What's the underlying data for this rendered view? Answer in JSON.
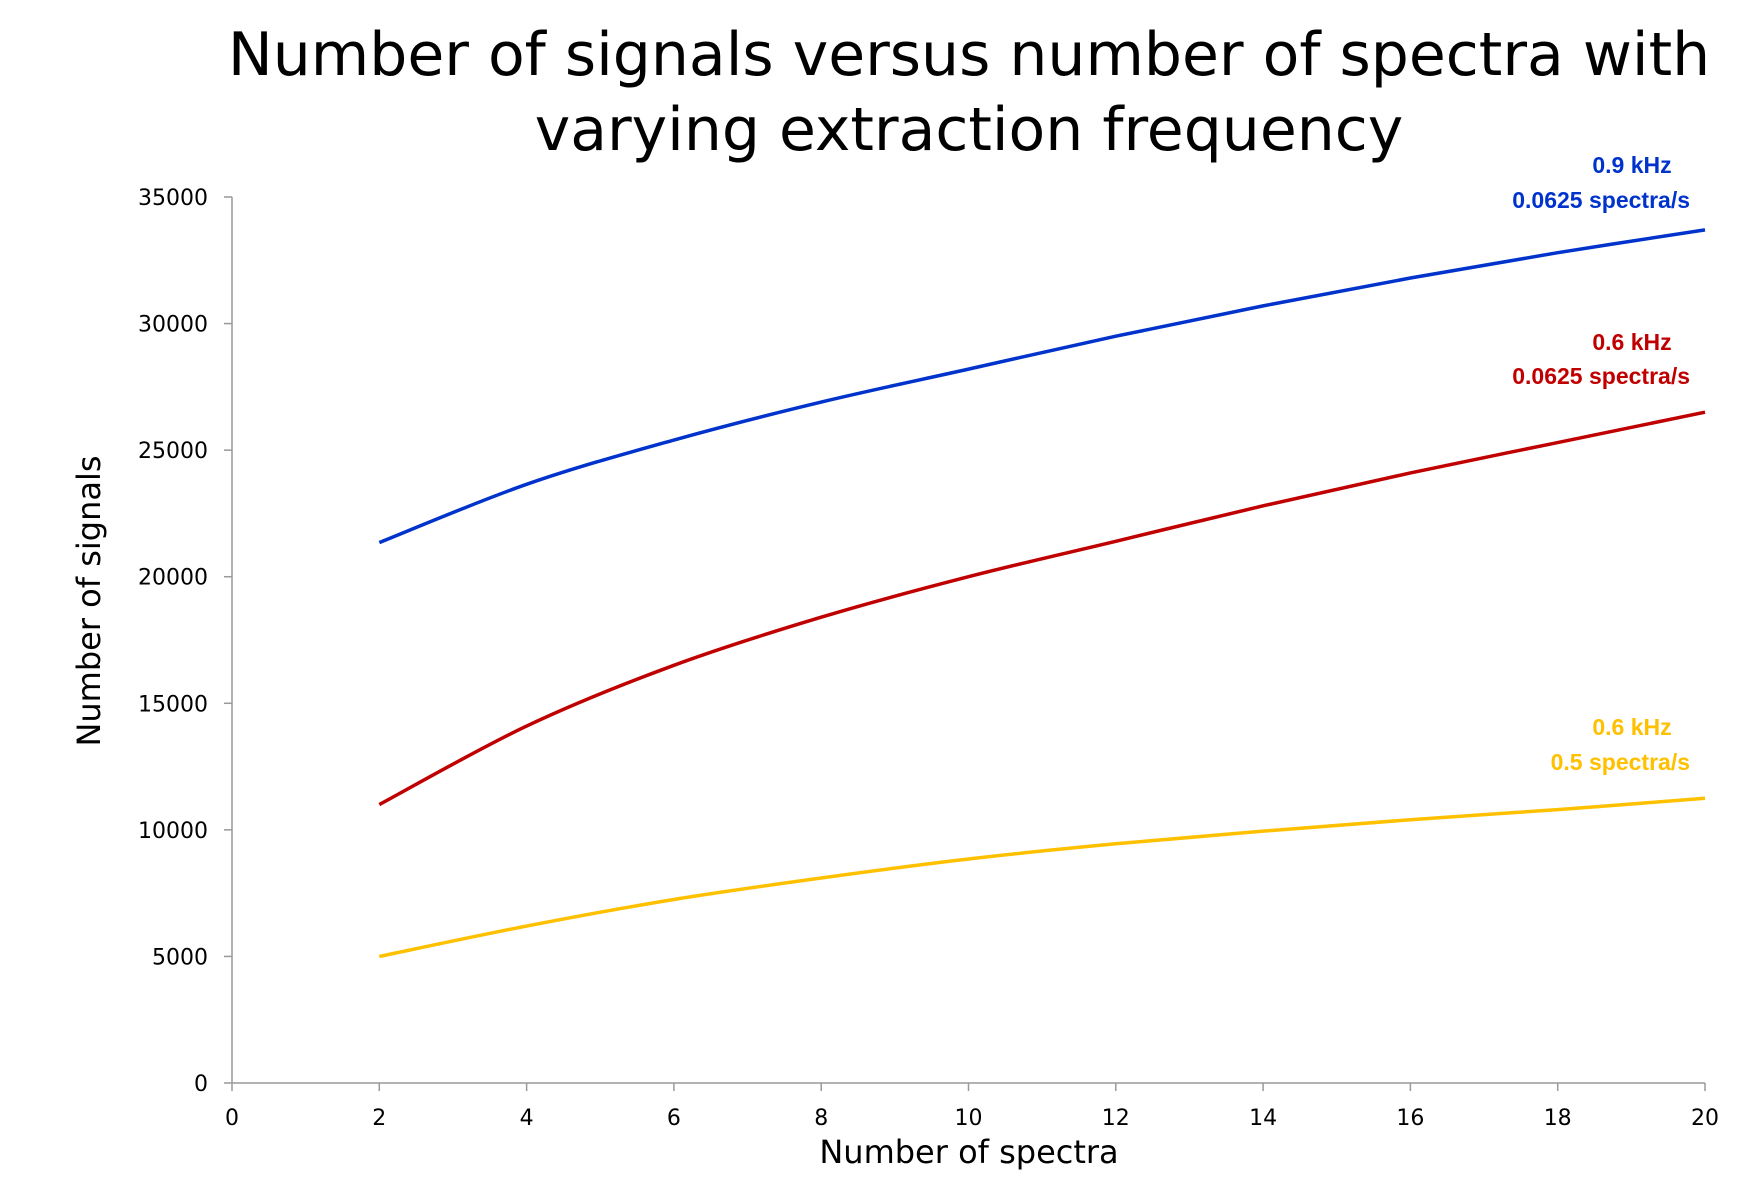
{
  "chart_data": {
    "type": "line",
    "title": "Number of signals versus number of spectra with varying extraction frequency",
    "x_label": "Number of spectra",
    "y_label": "Number of signals",
    "x": [
      2,
      4,
      6,
      8,
      10,
      12,
      14,
      16,
      18,
      20
    ],
    "series": [
      {
        "name": "0.9 kHz",
        "rate": "0.0625 spectra/s",
        "color": "#0033cc",
        "values": [
          21350,
          23650,
          25400,
          26900,
          28200,
          29500,
          30700,
          31800,
          32800,
          33700
        ]
      },
      {
        "name": "0.6 kHz",
        "rate": "0.0625 spectra/s",
        "color": "#c00000",
        "values": [
          11000,
          14100,
          16500,
          18400,
          20000,
          21400,
          22800,
          24100,
          25300,
          26500
        ]
      },
      {
        "name": "0.6 kHz",
        "rate": "0.5 spectra/s",
        "color": "#ffc000",
        "values": [
          5000,
          6200,
          7250,
          8100,
          8850,
          9450,
          9950,
          10400,
          10800,
          11250
        ]
      }
    ],
    "xlim": [
      0,
      20
    ],
    "xticks": [
      0,
      2,
      4,
      6,
      8,
      10,
      12,
      14,
      16,
      18,
      20
    ],
    "ylim": [
      0,
      35000
    ],
    "yticks": [
      0,
      5000,
      10000,
      15000,
      20000,
      25000,
      30000,
      35000
    ],
    "grid": false
  }
}
